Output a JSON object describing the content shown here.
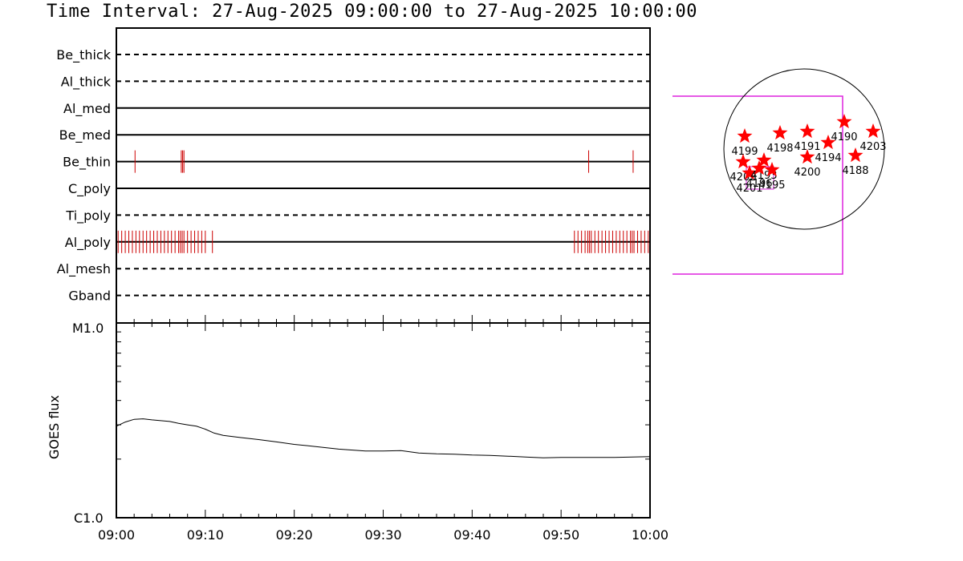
{
  "title": "Time Interval: 27-Aug-2025 09:00:00 to 27-Aug-2025 10:00:00",
  "colors": {
    "event": "#cc0000",
    "fov": "#dd22dd",
    "star": "#ff0000",
    "line": "#000000"
  },
  "chart_data": {
    "type": "line",
    "time_start": "09:00",
    "time_end": "10:00",
    "x_tick_labels": [
      "09:00",
      "09:10",
      "09:20",
      "09:30",
      "09:40",
      "09:50",
      "10:00"
    ],
    "x_tick_minutes": [
      0,
      10,
      20,
      30,
      40,
      50,
      60
    ],
    "filters": [
      {
        "name": "Be_thick",
        "style": "dashed",
        "events": []
      },
      {
        "name": "Al_thick",
        "style": "dashed",
        "events": []
      },
      {
        "name": "Al_med",
        "style": "solid",
        "events": []
      },
      {
        "name": "Be_med",
        "style": "solid",
        "events": []
      },
      {
        "name": "Be_thin",
        "style": "solid",
        "events": [
          2.1,
          7.3,
          7.45,
          7.6,
          53.1,
          58.1
        ]
      },
      {
        "name": "C_poly",
        "style": "solid",
        "events": []
      },
      {
        "name": "Ti_poly",
        "style": "dashed",
        "events": []
      },
      {
        "name": "Al_poly",
        "style": "solid",
        "events": [
          0.2,
          0.6,
          1.0,
          1.4,
          1.8,
          2.2,
          2.6,
          3.0,
          3.4,
          3.8,
          4.2,
          4.6,
          5.0,
          5.4,
          5.8,
          6.2,
          6.6,
          7.0,
          7.2,
          7.4,
          7.6,
          8.0,
          8.4,
          8.8,
          9.2,
          9.6,
          10.0,
          10.8,
          51.5,
          51.9,
          52.3,
          52.7,
          53.0,
          53.2,
          53.4,
          53.8,
          54.2,
          54.6,
          55.0,
          55.4,
          55.8,
          56.2,
          56.6,
          57.0,
          57.4,
          57.8,
          58.0,
          58.2,
          58.6,
          59.0,
          59.4,
          59.8
        ]
      },
      {
        "name": "Al_mesh",
        "style": "dashed",
        "events": []
      },
      {
        "name": "Gband",
        "style": "dashed",
        "events": []
      }
    ],
    "goes": {
      "ylabel": "GOES flux",
      "y_top_label": "M1.0",
      "y_bottom_label": "C1.0",
      "y_scale": "log",
      "x_minutes": [
        0,
        1,
        2,
        3,
        4,
        5,
        6,
        7,
        8,
        9,
        10,
        11,
        12,
        14,
        16,
        18,
        20,
        22,
        25,
        28,
        30,
        32,
        34,
        36,
        38,
        40,
        42,
        44,
        46,
        48,
        50,
        52,
        54,
        56,
        58,
        60
      ],
      "flux_c": [
        2.95,
        3.1,
        3.2,
        3.22,
        3.18,
        3.15,
        3.12,
        3.05,
        3.0,
        2.95,
        2.85,
        2.72,
        2.65,
        2.58,
        2.52,
        2.45,
        2.38,
        2.33,
        2.25,
        2.2,
        2.2,
        2.21,
        2.15,
        2.13,
        2.12,
        2.1,
        2.09,
        2.07,
        2.05,
        2.03,
        2.04,
        2.04,
        2.04,
        2.04,
        2.05,
        2.06
      ]
    },
    "active_regions": [
      {
        "label": "4199",
        "px": 0.13,
        "py": 0.42
      },
      {
        "label": "4198",
        "px": 0.35,
        "py": 0.4
      },
      {
        "label": "4191",
        "px": 0.52,
        "py": 0.39
      },
      {
        "label": "4190",
        "px": 0.75,
        "py": 0.33
      },
      {
        "label": "4203",
        "px": 0.93,
        "py": 0.39
      },
      {
        "label": "4194",
        "px": 0.65,
        "py": 0.46
      },
      {
        "label": "4200",
        "px": 0.52,
        "py": 0.55
      },
      {
        "label": "4188",
        "px": 0.82,
        "py": 0.54
      },
      {
        "label": "4202",
        "px": 0.12,
        "py": 0.58
      },
      {
        "label": "4201",
        "px": 0.16,
        "py": 0.65
      },
      {
        "label": "4193",
        "px": 0.25,
        "py": 0.57
      },
      {
        "label": "4196",
        "px": 0.22,
        "py": 0.62
      },
      {
        "label": "4195",
        "px": 0.3,
        "py": 0.63
      }
    ]
  }
}
